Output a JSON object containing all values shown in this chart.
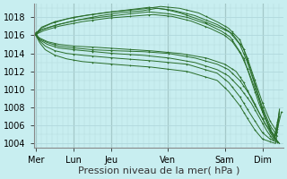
{
  "bg_color": "#c8eef0",
  "grid_color": "#b0d8dc",
  "line_color": "#2a6e2a",
  "sep_color": "#556655",
  "xlabel": "Pression niveau de la mer( hPa )",
  "xlabel_fontsize": 8,
  "ylim": [
    1003.5,
    1019.5
  ],
  "yticks": [
    1004,
    1006,
    1008,
    1010,
    1012,
    1014,
    1016,
    1018
  ],
  "day_labels": [
    "Mer",
    "Lun",
    "Jeu",
    "Ven",
    "Sam",
    "Dim"
  ],
  "day_positions": [
    0.0,
    1.0,
    2.0,
    3.5,
    5.0,
    6.0
  ],
  "xlim": [
    -0.05,
    6.55
  ],
  "tick_fontsize": 7
}
